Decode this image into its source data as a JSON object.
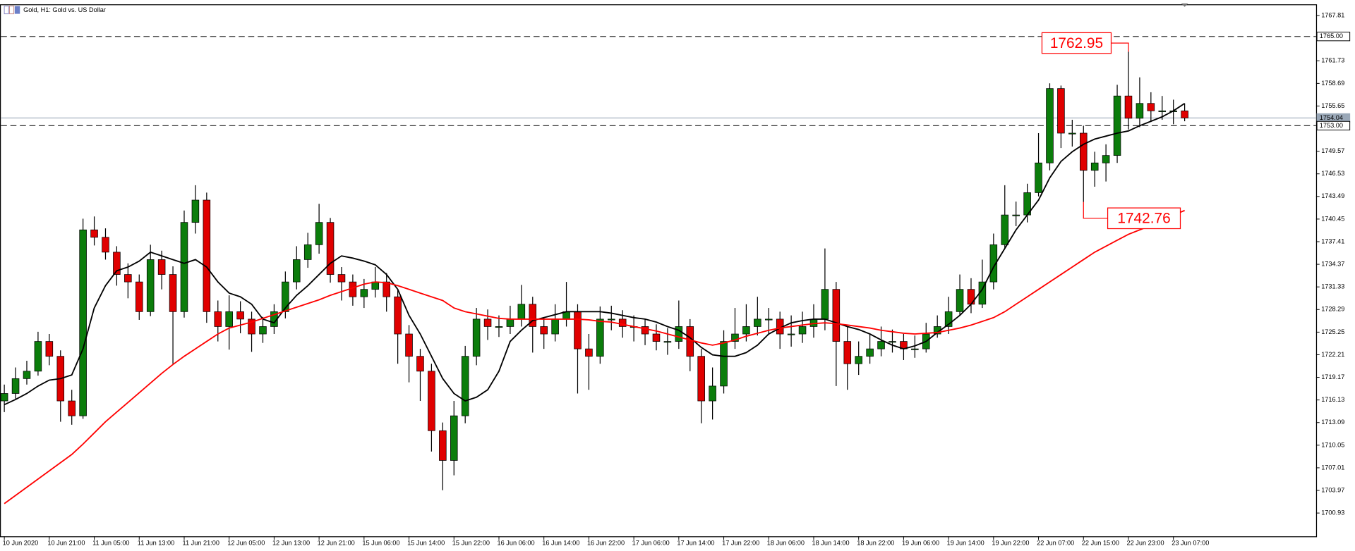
{
  "chart_data": {
    "type": "candlestick",
    "title": "Gold, H1:  Gold vs. US Dollar",
    "x": [
      "10 Jun 2020",
      null,
      null,
      null,
      "10 Jun 21:00",
      null,
      null,
      null,
      "11 Jun 05:00",
      null,
      null,
      null,
      "11 Jun 13:00",
      null,
      null,
      null,
      "11 Jun 21:00",
      null,
      null,
      null,
      "12 Jun 05:00",
      null,
      null,
      null,
      "12 Jun 13:00",
      null,
      null,
      null,
      "12 Jun 21:00",
      null,
      null,
      null,
      "15 Jun 06:00",
      null,
      null,
      null,
      "15 Jun 14:00",
      null,
      null,
      null,
      "15 Jun 22:00",
      null,
      null,
      null,
      "16 Jun 06:00",
      null,
      null,
      null,
      "16 Jun 14:00",
      null,
      null,
      null,
      "16 Jun 22:00",
      null,
      null,
      null,
      "17 Jun 06:00",
      null,
      null,
      null,
      "17 Jun 14:00",
      null,
      null,
      null,
      "17 Jun 22:00",
      null,
      null,
      null,
      "18 Jun 06:00",
      null,
      null,
      null,
      "18 Jun 14:00",
      null,
      null,
      null,
      "18 Jun 22:00",
      null,
      null,
      null,
      "19 Jun 06:00",
      null,
      null,
      null,
      "19 Jun 14:00",
      null,
      null,
      null,
      "19 Jun 22:00",
      null,
      null,
      null,
      "22 Jun 07:00",
      null,
      null,
      null,
      "22 Jun 15:00",
      null,
      null,
      null,
      "22 Jun 23:00",
      null,
      null,
      null,
      "23 Jun 07:00",
      null
    ],
    "open": [
      1716,
      1717,
      1719,
      1720,
      1724,
      1722,
      1716,
      1714,
      1739,
      1738,
      1736,
      1733,
      1732,
      1728,
      1735,
      1733,
      1728,
      1740,
      1743,
      1728,
      1726,
      1728,
      1727,
      1725,
      1726,
      1728,
      1732,
      1735,
      1737,
      1740,
      1733,
      1732,
      1730,
      1731,
      1732,
      1730,
      1725,
      1722,
      1720,
      1712,
      1708,
      1714,
      1722,
      1727,
      1726,
      1726,
      1727,
      1729,
      1726,
      1725,
      1727,
      1728,
      1723,
      1722,
      1727,
      1727,
      1726,
      1726,
      1725,
      1724,
      1724,
      1726,
      1722,
      1716,
      1718,
      1724,
      1725,
      1726,
      1727,
      1727,
      1725,
      1725,
      1726,
      1727,
      1731,
      1724,
      1721,
      1722,
      1723,
      1724,
      1724,
      1723,
      1723,
      1725,
      1726,
      1728,
      1731,
      1729,
      1732,
      1737,
      1741,
      1741,
      1744,
      1748,
      1758,
      1752,
      1752,
      1747,
      1748,
      1749,
      1757,
      1754,
      1756,
      1755,
      1755,
      1755
    ],
    "high": [
      1718.2,
      1720.5,
      1721.4,
      1725.3,
      1725.0,
      1722.8,
      1717.5,
      1740.5,
      1740.8,
      1739.2,
      1736.8,
      1734.5,
      1733.0,
      1737.0,
      1736.2,
      1734.1,
      1741.6,
      1745.0,
      1744.0,
      1729.5,
      1730.2,
      1729.4,
      1728.0,
      1727.3,
      1729.0,
      1733.4,
      1736.8,
      1738.6,
      1742.5,
      1740.6,
      1734.0,
      1733.0,
      1732.4,
      1734.0,
      1733.2,
      1731.0,
      1726.2,
      1723.0,
      1721.0,
      1713.1,
      1716.0,
      1723.4,
      1728.5,
      1728.3,
      1727.5,
      1728.8,
      1731.6,
      1730.0,
      1727.2,
      1729.0,
      1732.0,
      1729.0,
      1725.0,
      1728.7,
      1728.8,
      1728.2,
      1727.5,
      1727.0,
      1726.3,
      1725.8,
      1729.5,
      1727.0,
      1723.0,
      1720.5,
      1725.5,
      1728.5,
      1729.0,
      1730.0,
      1728.5,
      1728.0,
      1727.5,
      1728.0,
      1729.0,
      1736.5,
      1732.0,
      1726.0,
      1724.0,
      1725.0,
      1726.0,
      1725.6,
      1725.0,
      1724.8,
      1726.5,
      1727.5,
      1730.0,
      1733.0,
      1732.5,
      1735.0,
      1738.5,
      1745.0,
      1742.8,
      1745.2,
      1752.0,
      1758.7,
      1758.4,
      1753.8,
      1753.0,
      1749.5,
      1750.5,
      1758.5,
      1762.95,
      1759.5,
      1757.5,
      1757.0,
      1756.5,
      1756.0
    ],
    "low": [
      1714.5,
      1716.3,
      1718.2,
      1719.4,
      1720.8,
      1713.2,
      1712.8,
      1713.6,
      1736.9,
      1735.0,
      1731.5,
      1729.8,
      1726.9,
      1727.4,
      1731.0,
      1721.0,
      1727.2,
      1738.5,
      1726.5,
      1724.0,
      1722.9,
      1725.1,
      1722.6,
      1723.8,
      1725.0,
      1727.1,
      1731.0,
      1733.9,
      1735.8,
      1731.9,
      1729.5,
      1728.8,
      1728.5,
      1729.9,
      1728.0,
      1721.0,
      1718.5,
      1716.0,
      1709.2,
      1704.0,
      1706.0,
      1713.0,
      1720.8,
      1724.2,
      1724.6,
      1725.0,
      1726.0,
      1722.5,
      1723.0,
      1724.0,
      1726.0,
      1717.0,
      1717.5,
      1721.0,
      1725.5,
      1724.5,
      1724.0,
      1723.5,
      1722.8,
      1722.2,
      1723.0,
      1720.0,
      1713.0,
      1713.5,
      1717.0,
      1723.0,
      1724.0,
      1724.8,
      1725.0,
      1723.0,
      1723.3,
      1723.8,
      1724.5,
      1725.5,
      1718.0,
      1717.5,
      1719.5,
      1721.0,
      1722.0,
      1722.5,
      1721.5,
      1721.8,
      1722.5,
      1724.5,
      1725.0,
      1727.5,
      1727.8,
      1728.5,
      1731.0,
      1736.5,
      1739.5,
      1740.0,
      1743.5,
      1747.0,
      1750.0,
      1750.2,
      1742.76,
      1744.8,
      1745.5,
      1748.0,
      1752.5,
      1752.8,
      1753.5,
      1753.8,
      1753.2,
      1753.6
    ],
    "close": [
      1717,
      1719,
      1720,
      1724,
      1722,
      1716,
      1714,
      1739,
      1738,
      1736,
      1733,
      1732,
      1728,
      1735,
      1733,
      1728,
      1740,
      1743,
      1728,
      1726,
      1728,
      1727,
      1725,
      1726,
      1728,
      1732,
      1735,
      1737,
      1740,
      1733,
      1732,
      1730,
      1731,
      1732,
      1730,
      1725,
      1722,
      1720,
      1712,
      1708,
      1714,
      1722,
      1727,
      1726,
      1726,
      1727,
      1729,
      1726,
      1725,
      1727,
      1728,
      1723,
      1722,
      1727,
      1727,
      1726,
      1726,
      1725,
      1724,
      1724,
      1726,
      1722,
      1716,
      1718,
      1724,
      1725,
      1726,
      1727,
      1727,
      1725,
      1725,
      1726,
      1727,
      1731,
      1724,
      1721,
      1722,
      1723,
      1724,
      1724,
      1723,
      1723,
      1725,
      1726,
      1728,
      1731,
      1729,
      1732,
      1737,
      1741,
      1741,
      1744,
      1748,
      1758,
      1752,
      1752,
      1747,
      1748,
      1749,
      1757,
      1754,
      1756,
      1755,
      1755,
      1755,
      1754.04
    ],
    "up_color": "#0b7d0b",
    "down_color": "#e00000",
    "lines": [
      {
        "color": "#000000",
        "values": [
          1715.5,
          1716.2,
          1717,
          1718,
          1718.8,
          1719,
          1719.5,
          1723,
          1728.5,
          1731.5,
          1733.5,
          1734,
          1734.8,
          1736,
          1735.5,
          1735,
          1734.5,
          1735,
          1734,
          1732,
          1730.5,
          1730,
          1729,
          1727,
          1726.5,
          1728.5,
          1730.2,
          1731.5,
          1733,
          1734.5,
          1735.5,
          1735.2,
          1734.8,
          1734.3,
          1733,
          1731,
          1727.5,
          1725,
          1722,
          1719,
          1717,
          1716,
          1716.5,
          1717.5,
          1720,
          1724,
          1725.5,
          1726.8,
          1727.2,
          1727.6,
          1728,
          1728,
          1728,
          1728,
          1727.8,
          1727.5,
          1727.2,
          1727,
          1726.6,
          1726,
          1725.5,
          1724.5,
          1723.2,
          1722.2,
          1722,
          1722,
          1722.5,
          1723.5,
          1725,
          1725.8,
          1726.5,
          1726.8,
          1727,
          1727,
          1726.5,
          1726,
          1725.6,
          1725,
          1724.2,
          1723.5,
          1723,
          1723.4,
          1724,
          1725.2,
          1726.3,
          1727.5,
          1729,
          1731,
          1734,
          1736.5,
          1739,
          1741,
          1743,
          1746,
          1748.2,
          1749.5,
          1750.5,
          1751.2,
          1751.6,
          1752,
          1752.3,
          1753,
          1753.6,
          1754.2,
          1755,
          1756
        ]
      },
      {
        "color": "#ff0000",
        "values": [
          1702.2,
          1703.3,
          1704.4,
          1705.5,
          1706.6,
          1707.7,
          1708.8,
          1710.2,
          1711.7,
          1713.2,
          1714.5,
          1715.8,
          1717.1,
          1718.4,
          1719.7,
          1720.9,
          1722,
          1723,
          1724,
          1725,
          1725.8,
          1726.2,
          1726.6,
          1727.1,
          1727.6,
          1728.1,
          1728.6,
          1729.1,
          1729.6,
          1730.2,
          1730.7,
          1731.2,
          1731.7,
          1732,
          1731.9,
          1731.5,
          1731,
          1730.5,
          1730,
          1729.5,
          1728.5,
          1728,
          1727.7,
          1727.4,
          1727.1,
          1727,
          1727,
          1727,
          1727,
          1727,
          1727,
          1727,
          1726.9,
          1726.7,
          1726.6,
          1726.3,
          1726,
          1725.7,
          1725.4,
          1725,
          1724.6,
          1724.2,
          1723.8,
          1723.5,
          1723.8,
          1724.2,
          1724.7,
          1725.1,
          1725.5,
          1725.8,
          1726,
          1726.2,
          1726.4,
          1726.5,
          1726.4,
          1726.2,
          1726,
          1725.8,
          1725.5,
          1725.3,
          1725.1,
          1725,
          1725.1,
          1725.2,
          1725.5,
          1725.8,
          1726.2,
          1726.7,
          1727.2,
          1728,
          1729,
          1730,
          1731,
          1732,
          1733,
          1734,
          1735,
          1736,
          1736.8,
          1737.6,
          1738.4,
          1739,
          1739.6,
          1740.3,
          1741,
          1741.6
        ]
      }
    ],
    "ylim": [
      1697.8,
      1769.32
    ],
    "yticks": [
      1700.93,
      1703.97,
      1707.01,
      1710.05,
      1713.09,
      1716.13,
      1719.17,
      1722.21,
      1725.25,
      1728.29,
      1731.33,
      1734.37,
      1737.41,
      1740.45,
      1743.49,
      1746.53,
      1749.57,
      1755.65,
      1758.69,
      1761.73,
      1767.81
    ],
    "grid": false,
    "price_lines": [
      {
        "value": 1765,
        "label": "1765.00",
        "style": "dashed",
        "color": "#333333"
      },
      {
        "value": 1754.04,
        "style": "solid",
        "color": "#9aa8b8"
      },
      {
        "value": 1753,
        "label": "1753.00",
        "style": "dashed",
        "color": "#333333"
      }
    ],
    "annotations": [
      {
        "value": 1762.95,
        "at": "high",
        "color": "#ff0000"
      },
      {
        "value": 1742.76,
        "at": "low",
        "color": "#ff0000"
      }
    ]
  }
}
